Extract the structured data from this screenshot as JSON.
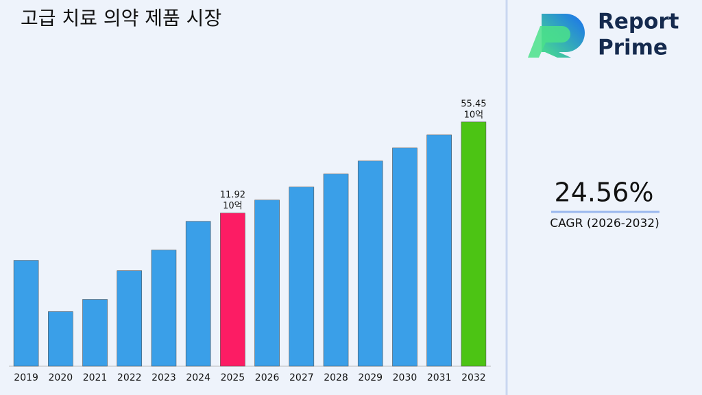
{
  "chart_data": {
    "type": "bar",
    "title": "고급 치료 의약 제품 시장",
    "categories": [
      "2019",
      "2020",
      "2021",
      "2022",
      "2023",
      "2024",
      "2025",
      "2026",
      "2027",
      "2028",
      "2029",
      "2030",
      "2031",
      "2032"
    ],
    "values": [
      5.37,
      2.26,
      2.78,
      4.51,
      6.39,
      10.37,
      11.92,
      14.85,
      18.49,
      23.03,
      28.69,
      35.74,
      44.52,
      55.45
    ],
    "value_labels": [
      null,
      null,
      null,
      null,
      null,
      null,
      "11.92",
      null,
      null,
      null,
      null,
      null,
      null,
      "55.45"
    ],
    "value_unit": "10억",
    "colors": [
      "#3a9fe8",
      "#3a9fe8",
      "#3a9fe8",
      "#3a9fe8",
      "#3a9fe8",
      "#3a9fe8",
      "#fc1c64",
      "#3a9fe8",
      "#3a9fe8",
      "#3a9fe8",
      "#3a9fe8",
      "#3a9fe8",
      "#3a9fe8",
      "#4cc414"
    ],
    "log_scale": true,
    "ylim": [
      0.9,
      60
    ]
  },
  "sidebar": {
    "brand_line1": "Report",
    "brand_line2": "Prime",
    "cagr_value": "24.56%",
    "cagr_label": "CAGR (2026-2032)"
  }
}
